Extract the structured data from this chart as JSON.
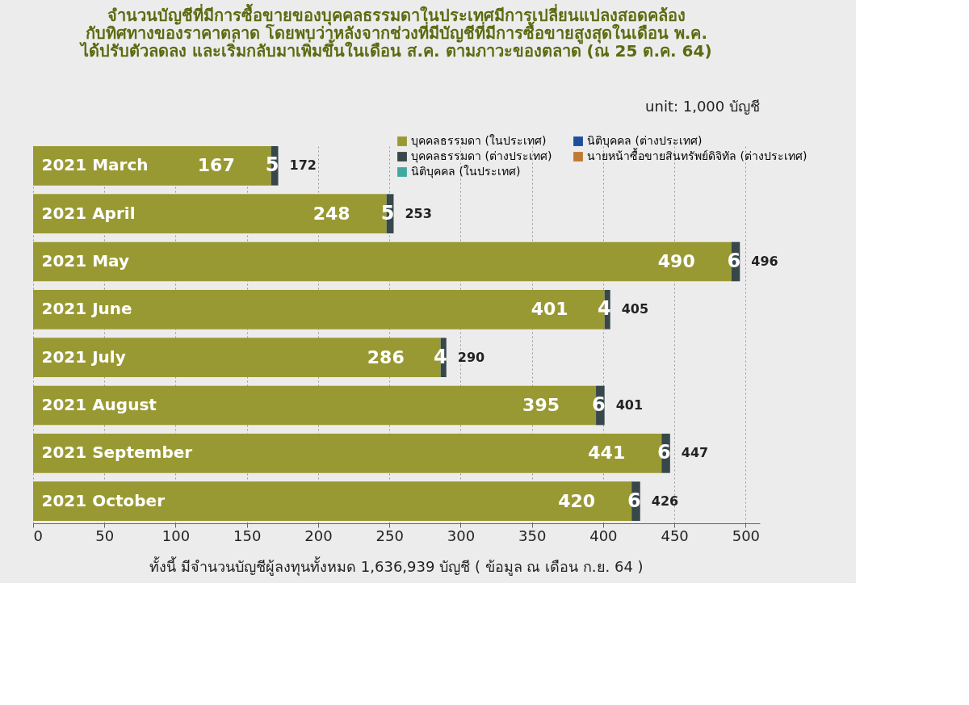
{
  "chart_data": {
    "type": "bar",
    "orientation": "horizontal",
    "stacked": true,
    "title": [
      "จำนวนบัญชีที่มีการซื้อขายของบุคคลธรรมดาในประเทศมีการเปลี่ยนแปลงสอดคล้อง",
      "กับทิศทางของราคาตลาด โดยพบว่าหลังจากช่วงที่มีบัญชีที่มีการซื้อขายสูงสุดในเดือน พ.ค.",
      "ได้ปรับตัวลดลง และเริ่มกลับมาเพิ่มขึ้นในเดือน ส.ค. ตามภาวะของตลาด (ณ 25 ต.ค. 64)"
    ],
    "annotations": [
      "unit: 1,000 บัญชี",
      "ทั้งนี้ มีจำนวนบัญชีผู้ลงทุนทั้งหมด  1,636,939  บัญชี ( ข้อมูล ณ เดือน ก.ย. 64 )"
    ],
    "categories": [
      "2021 March",
      "2021 April",
      "2021 May",
      "2021 June",
      "2021 July",
      "2021 August",
      "2021 September",
      "2021 October"
    ],
    "series": [
      {
        "name": "บุคคลธรรมดา (ในประเทศ)",
        "color": "#999933",
        "values": [
          167,
          248,
          490,
          401,
          286,
          395,
          441,
          420
        ]
      },
      {
        "name": "บุคคลธรรมดา (ต่างประเทศ)",
        "color": "#37474a",
        "values": [
          5,
          5,
          6,
          4,
          4,
          6,
          6,
          6
        ]
      },
      {
        "name": "นิติบุคคล (ในประเทศ)",
        "color": "#3fa9a0",
        "values": [
          null,
          null,
          null,
          null,
          null,
          null,
          null,
          null
        ]
      },
      {
        "name": "นิติบุคคล (ต่างประเทศ)",
        "color": "#1f4e9e",
        "values": [
          null,
          null,
          null,
          null,
          null,
          null,
          null,
          null
        ]
      },
      {
        "name": "นายหน้าซื้อขายสินทรัพย์ดิจิทัล (ต่างประเทศ)",
        "color": "#c07a30",
        "values": [
          null,
          null,
          null,
          null,
          null,
          null,
          null,
          null
        ]
      }
    ],
    "totals": [
      "172",
      "253",
      "496",
      "405",
      "290",
      "401",
      "447",
      "426"
    ],
    "data_labels": true,
    "xlim": [
      0,
      510
    ],
    "xticks": [
      0,
      50,
      100,
      150,
      200,
      250,
      300,
      350,
      400,
      450,
      500
    ],
    "grid": "x",
    "legend": "top right"
  }
}
